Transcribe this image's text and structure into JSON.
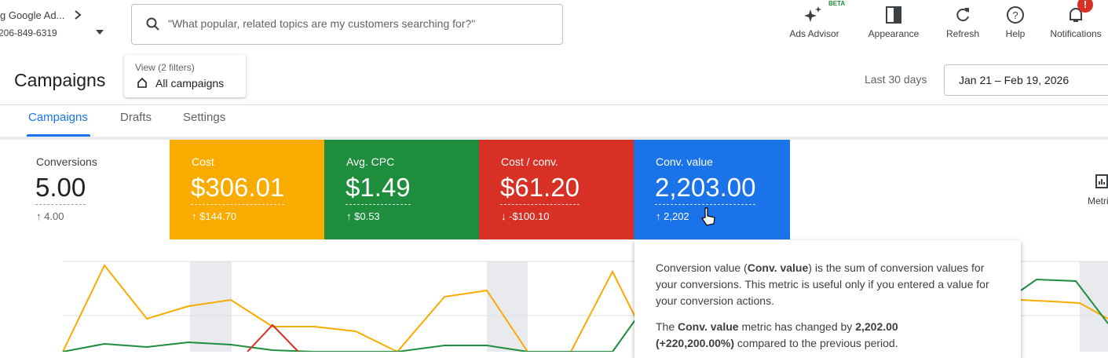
{
  "header": {
    "account_name": "g Google Ad...",
    "account_id": "206-849-6319",
    "search_placeholder": "\"What popular, related topics are my customers searching for?\"",
    "toolbar": [
      {
        "label": "Ads Advisor",
        "badge": "BETA"
      },
      {
        "label": "Appearance"
      },
      {
        "label": "Refresh"
      },
      {
        "label": "Help"
      },
      {
        "label": "Notifications",
        "badge": "!"
      }
    ]
  },
  "page": {
    "title": "Campaigns",
    "view_label": "View (2 filters)",
    "view_value": "All campaigns",
    "date_label": "Last 30 days",
    "date_range": "Jan 21 – Feb 19, 2026"
  },
  "tabs": [
    "Campaigns",
    "Drafts",
    "Settings"
  ],
  "metrics": [
    {
      "label": "Conversions",
      "value": "5.00",
      "change": "4.00"
    },
    {
      "label": "Cost",
      "value": "$306.01",
      "change": "$144.70"
    },
    {
      "label": "Avg. CPC",
      "value": "$1.49",
      "change": "$0.53"
    },
    {
      "label": "Cost / conv.",
      "value": "$61.20",
      "change": "-$100.10"
    },
    {
      "label": "Conv. value",
      "value": "2,203.00",
      "change": "2,202"
    }
  ],
  "metrics_button": "Metrics",
  "tooltip": {
    "p1": [
      "Conversion value (",
      "Conv. value",
      ")  is the sum of conversion values for your conversions. This metric is useful only if you entered a value for your conversion actions."
    ],
    "p2": [
      "The ",
      "Conv. value",
      " metric has changed by ",
      "2,202.00",
      "(+220,200.00%)",
      " compared to the previous period."
    ]
  }
}
